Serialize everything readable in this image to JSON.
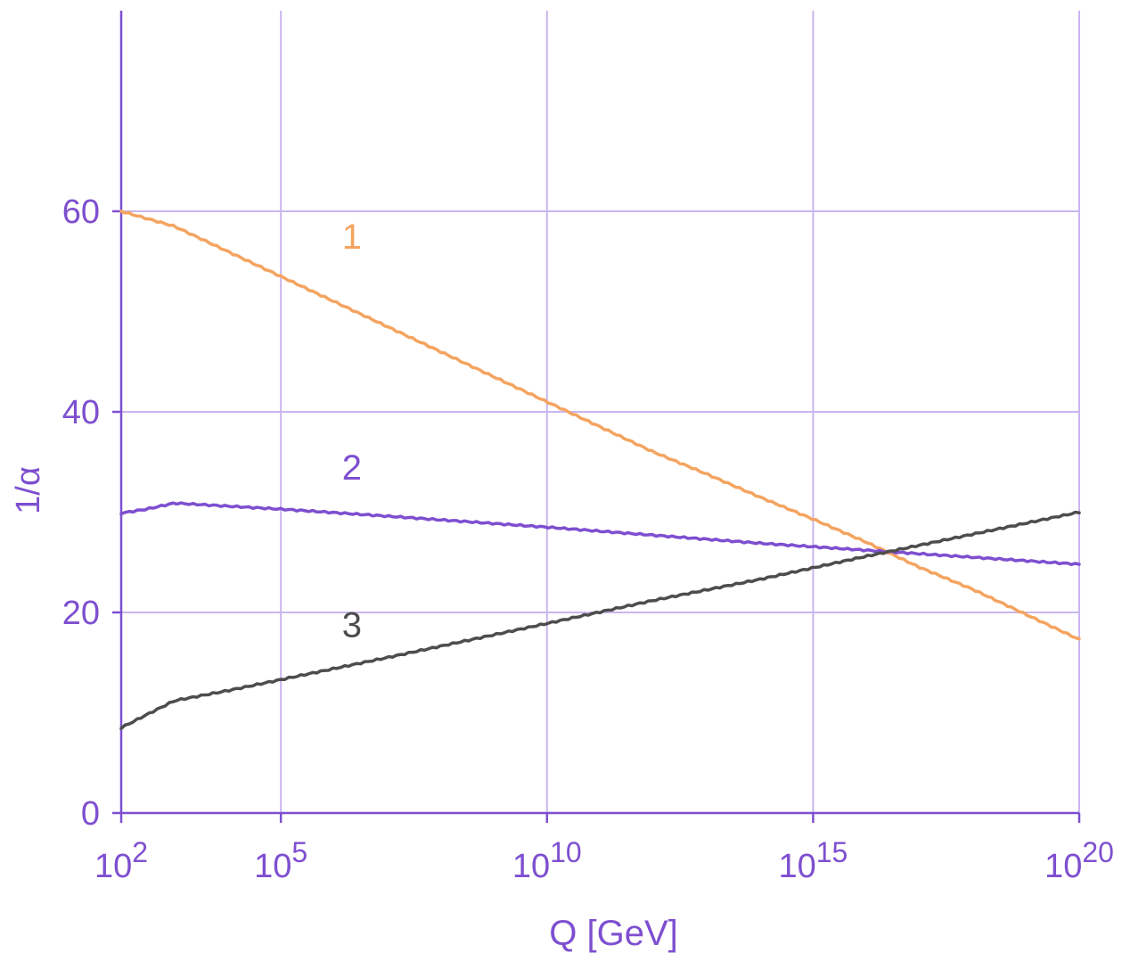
{
  "chart_data": {
    "type": "line",
    "xlabel": "Q [GeV]",
    "ylabel": "1/α",
    "x_scale": "log10",
    "xlim": [
      100,
      1e+20
    ],
    "ylim": [
      0,
      80
    ],
    "grid": true,
    "x_ticks": [
      {
        "value": 100,
        "base": "10",
        "exp": "2"
      },
      {
        "value": 100000,
        "base": "10",
        "exp": "5"
      },
      {
        "value": 10000000000.0,
        "base": "10",
        "exp": "10"
      },
      {
        "value": 1000000000000000.0,
        "base": "10",
        "exp": "15"
      },
      {
        "value": 1e+20,
        "base": "10",
        "exp": "20"
      }
    ],
    "y_ticks": [
      {
        "value": 0,
        "label": "0"
      },
      {
        "value": 20,
        "label": "20"
      },
      {
        "value": 40,
        "label": "40"
      },
      {
        "value": 60,
        "label": "60"
      }
    ],
    "series": [
      {
        "label": "1",
        "color": "#f4a460",
        "label_at": {
          "x": 1000000.0,
          "y": 57.5
        },
        "points": [
          {
            "x": 100,
            "y": 60.0
          },
          {
            "x": 1000,
            "y": 58.5
          },
          {
            "x": 10000,
            "y": 56.0
          },
          {
            "x": 100000,
            "y": 53.5
          },
          {
            "x": 1000000.0,
            "y": 51.0
          },
          {
            "x": 10000000.0,
            "y": 48.5
          },
          {
            "x": 100000000.0,
            "y": 46.0
          },
          {
            "x": 1000000000.0,
            "y": 43.5
          },
          {
            "x": 10000000000.0,
            "y": 41.0
          },
          {
            "x": 100000000000.0,
            "y": 38.5
          },
          {
            "x": 1000000000000.0,
            "y": 36.0
          },
          {
            "x": 10000000000000.0,
            "y": 33.8
          },
          {
            "x": 100000000000000.0,
            "y": 31.5
          },
          {
            "x": 1000000000000000.0,
            "y": 29.3
          },
          {
            "x": 1e+16,
            "y": 27.0
          },
          {
            "x": 1e+17,
            "y": 24.5
          },
          {
            "x": 1e+18,
            "y": 22.3
          },
          {
            "x": 1e+19,
            "y": 19.8
          },
          {
            "x": 1e+20,
            "y": 17.3
          }
        ]
      },
      {
        "label": "2",
        "color": "#7e4fd0",
        "label_at": {
          "x": 1000000.0,
          "y": 34.5
        },
        "points": [
          {
            "x": 100,
            "y": 29.9
          },
          {
            "x": 300,
            "y": 30.3
          },
          {
            "x": 1000,
            "y": 30.9
          },
          {
            "x": 10000,
            "y": 30.6
          },
          {
            "x": 100000,
            "y": 30.3
          },
          {
            "x": 10000000.0,
            "y": 29.6
          },
          {
            "x": 10000000000.0,
            "y": 28.5
          },
          {
            "x": 1000000000000.0,
            "y": 27.7
          },
          {
            "x": 100000000000000.0,
            "y": 26.9
          },
          {
            "x": 1e+16,
            "y": 26.2
          },
          {
            "x": 1e+18,
            "y": 25.5
          },
          {
            "x": 1e+20,
            "y": 24.8
          }
        ]
      },
      {
        "label": "3",
        "color": "#4d4d4d",
        "label_at": {
          "x": 1000000.0,
          "y": 18.8
        },
        "points": [
          {
            "x": 100,
            "y": 8.5
          },
          {
            "x": 300,
            "y": 9.8
          },
          {
            "x": 1000,
            "y": 11.2
          },
          {
            "x": 10000,
            "y": 12.2
          },
          {
            "x": 100000,
            "y": 13.3
          },
          {
            "x": 10000000.0,
            "y": 15.5
          },
          {
            "x": 10000000000.0,
            "y": 18.9
          },
          {
            "x": 1000000000000.0,
            "y": 21.2
          },
          {
            "x": 100000000000000.0,
            "y": 23.3
          },
          {
            "x": 1e+16,
            "y": 25.6
          },
          {
            "x": 1e+18,
            "y": 27.8
          },
          {
            "x": 1e+20,
            "y": 30.0
          }
        ]
      }
    ],
    "colors": {
      "axis": "#7e4fd0",
      "grid": "#c9b6ee",
      "tick_text": "#7e4fd0"
    }
  }
}
